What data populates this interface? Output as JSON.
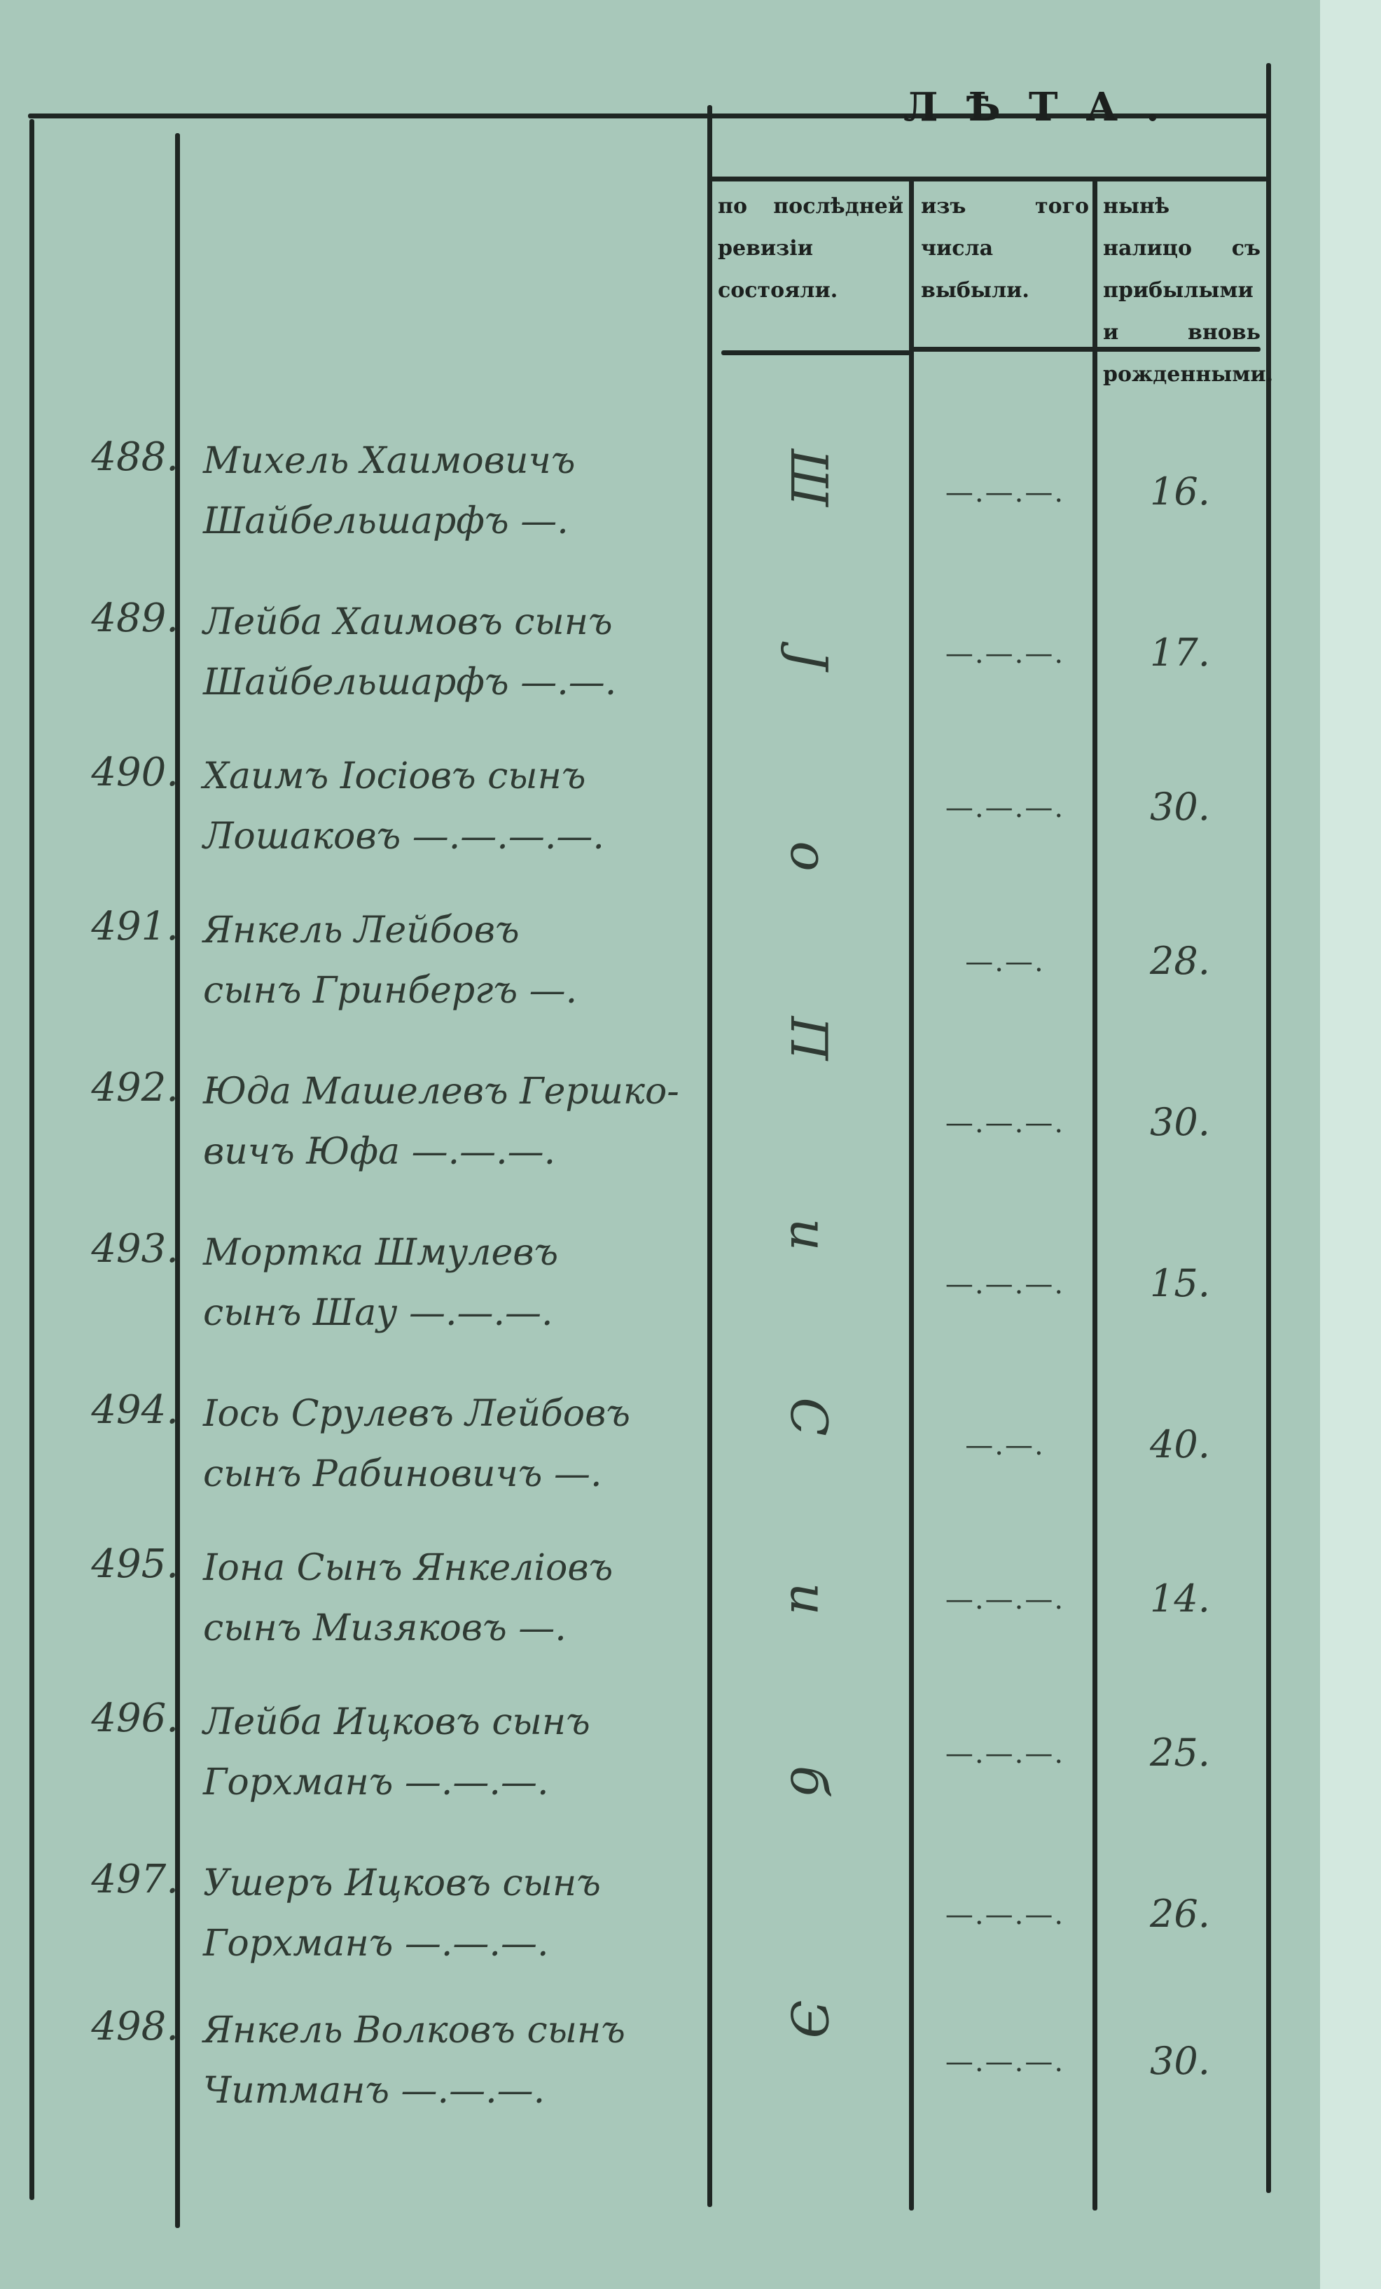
{
  "header": {
    "title": "ЛѢТА.",
    "columns": [
      "по послѣдней ревизіи состояли.",
      "изъ того числа выбыли.",
      "нынѣ налицо съ прибылыми и вновь рожденными."
    ]
  },
  "vertical_note": [
    "Ш",
    "J",
    "о",
    "П",
    "и",
    "С",
    "и",
    "б",
    "Э"
  ],
  "rows": [
    {
      "num": "488.",
      "line1": "Михель Хаимовичъ",
      "line2": "Шайбельшарфъ —.",
      "dropped": "—.—.—.",
      "age": "16."
    },
    {
      "num": "489.",
      "line1": "Лейба Хаимовъ сынъ",
      "line2": "Шайбельшарфъ —.—.",
      "dropped": "—.—.—.",
      "age": "17."
    },
    {
      "num": "490.",
      "line1": "Хаимъ Іосіовъ сынъ",
      "line2": "Лошаковъ —.—.—.—.",
      "dropped": "—.—.—.",
      "age": "30."
    },
    {
      "num": "491.",
      "line1": "Янкель Лейбовъ",
      "line2": "сынъ Гринбергъ —.",
      "dropped": "—.—.",
      "age": "28."
    },
    {
      "num": "492.",
      "line1": "Юда Машелевъ Гершко-",
      "line2": "вичъ Юфа —.—.—.",
      "dropped": "—.—.—.",
      "age": "30."
    },
    {
      "num": "493.",
      "line1": "Мортка Шмулевъ",
      "line2": "сынъ Шау —.—.—.",
      "dropped": "—.—.—.",
      "age": "15."
    },
    {
      "num": "494.",
      "line1": "Іось Срулевъ Лейбовъ",
      "line2": "сынъ Рабиновичъ —.",
      "dropped": "—.—.",
      "age": "40."
    },
    {
      "num": "495.",
      "line1": "Іона Сынъ Янкеліовъ",
      "line2": "сынъ Мизяковъ —.",
      "dropped": "—.—.—.",
      "age": "14."
    },
    {
      "num": "496.",
      "line1": "Лейба Ицковъ сынъ",
      "line2": "Горхманъ —.—.—.",
      "dropped": "—.—.—.",
      "age": "25."
    },
    {
      "num": "497.",
      "line1": "Ушеръ Ицковъ сынъ",
      "line2": "Горхманъ —.—.—.",
      "dropped": "—.—.—.",
      "age": "26."
    },
    {
      "num": "498.",
      "line1": "Янкель Волковъ сынъ",
      "line2": "Читманъ —.—.—.",
      "dropped": "—.—.—.",
      "age": "30."
    }
  ]
}
